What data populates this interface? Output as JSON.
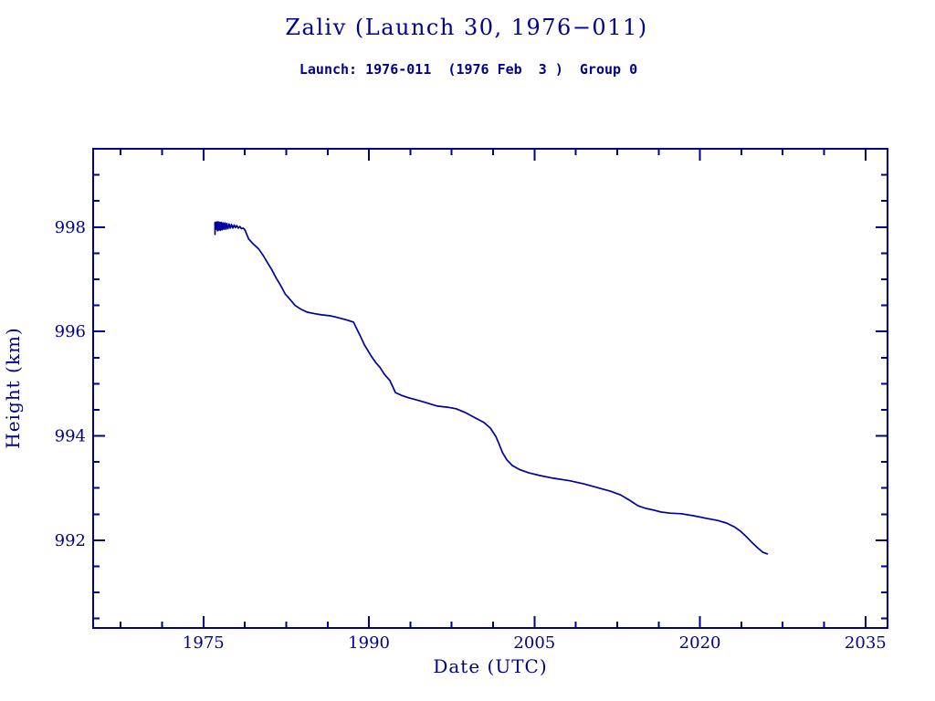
{
  "figure": {
    "background_color": "#FFFFFF",
    "text_color": "#00008B",
    "axis_color": "#00008B"
  },
  "chart_data": {
    "type": "line",
    "title": "Zaliv (Launch 30, 1976−011)",
    "subtitle": "Launch: 1976-011  (1976 Feb  3 )  Group 0",
    "xlabel": "Date (UTC)",
    "ylabel": "Height (km)",
    "xlim": [
      1965,
      2037
    ],
    "ylim": [
      990.32,
      999.5
    ],
    "xticks_major": [
      1975,
      1990,
      2005,
      2020,
      2035
    ],
    "xtick_minor_step": 3.75,
    "yticks_major": [
      992,
      994,
      996,
      998
    ],
    "ytick_minor_step": 0.5,
    "grid": false,
    "legend": "none",
    "line_color": "#0000A0",
    "series": [
      {
        "name": "height-km",
        "points": [
          [
            1976.04,
            998.08
          ],
          [
            1976.05,
            997.86
          ],
          [
            1976.06,
            998.09
          ],
          [
            1976.12,
            997.96
          ],
          [
            1976.2,
            998.1
          ],
          [
            1976.27,
            997.93
          ],
          [
            1976.34,
            998.1
          ],
          [
            1976.41,
            997.94
          ],
          [
            1976.48,
            998.09
          ],
          [
            1976.55,
            997.94
          ],
          [
            1976.62,
            998.09
          ],
          [
            1976.7,
            997.95
          ],
          [
            1976.78,
            998.08
          ],
          [
            1976.86,
            997.96
          ],
          [
            1976.94,
            998.08
          ],
          [
            1977.03,
            997.96
          ],
          [
            1977.12,
            998.07
          ],
          [
            1977.22,
            997.97
          ],
          [
            1977.32,
            998.06
          ],
          [
            1977.43,
            997.98
          ],
          [
            1977.54,
            998.05
          ],
          [
            1977.66,
            997.98
          ],
          [
            1977.78,
            998.04
          ],
          [
            1977.9,
            997.99
          ],
          [
            1978.02,
            998.03
          ],
          [
            1978.16,
            997.98
          ],
          [
            1978.3,
            998.01
          ],
          [
            1978.45,
            997.97
          ],
          [
            1978.6,
            997.98
          ],
          [
            1978.75,
            997.95
          ],
          [
            1979.1,
            997.77
          ],
          [
            1979.5,
            997.68
          ],
          [
            1980.0,
            997.58
          ],
          [
            1980.4,
            997.46
          ],
          [
            1980.8,
            997.32
          ],
          [
            1981.2,
            997.18
          ],
          [
            1981.6,
            997.02
          ],
          [
            1982.0,
            996.88
          ],
          [
            1982.4,
            996.72
          ],
          [
            1982.9,
            996.6
          ],
          [
            1983.3,
            996.5
          ],
          [
            1983.8,
            996.43
          ],
          [
            1984.4,
            996.37
          ],
          [
            1985.1,
            996.34
          ],
          [
            1985.7,
            996.32
          ],
          [
            1986.5,
            996.3
          ],
          [
            1987.1,
            996.27
          ],
          [
            1988.0,
            996.22
          ],
          [
            1988.6,
            996.18
          ],
          [
            1988.8,
            996.09
          ],
          [
            1989.2,
            995.92
          ],
          [
            1989.6,
            995.74
          ],
          [
            1990.2,
            995.53
          ],
          [
            1990.6,
            995.41
          ],
          [
            1991.0,
            995.31
          ],
          [
            1991.4,
            995.18
          ],
          [
            1991.9,
            995.06
          ],
          [
            1992.2,
            994.92
          ],
          [
            1992.4,
            994.83
          ],
          [
            1992.9,
            994.78
          ],
          [
            1993.6,
            994.73
          ],
          [
            1994.3,
            994.69
          ],
          [
            1994.8,
            994.66
          ],
          [
            1995.6,
            994.61
          ],
          [
            1996.2,
            994.57
          ],
          [
            1997.1,
            994.55
          ],
          [
            1997.9,
            994.52
          ],
          [
            1998.7,
            994.45
          ],
          [
            1999.5,
            994.36
          ],
          [
            2000.4,
            994.26
          ],
          [
            2001.0,
            994.15
          ],
          [
            2001.5,
            993.99
          ],
          [
            2001.8,
            993.84
          ],
          [
            2002.1,
            993.68
          ],
          [
            2002.5,
            993.54
          ],
          [
            2003.0,
            993.43
          ],
          [
            2003.7,
            993.35
          ],
          [
            2004.5,
            993.29
          ],
          [
            2005.5,
            993.24
          ],
          [
            2006.7,
            993.19
          ],
          [
            2008.2,
            993.14
          ],
          [
            2009.5,
            993.08
          ],
          [
            2010.7,
            993.01
          ],
          [
            2011.9,
            992.94
          ],
          [
            2012.8,
            992.87
          ],
          [
            2013.6,
            992.77
          ],
          [
            2014.4,
            992.66
          ],
          [
            2015.1,
            992.61
          ],
          [
            2015.8,
            992.58
          ],
          [
            2016.5,
            992.54
          ],
          [
            2017.3,
            992.52
          ],
          [
            2018.3,
            992.51
          ],
          [
            2019.4,
            992.47
          ],
          [
            2020.6,
            992.42
          ],
          [
            2021.6,
            992.38
          ],
          [
            2022.4,
            992.33
          ],
          [
            2023.1,
            992.26
          ],
          [
            2023.7,
            992.17
          ],
          [
            2024.2,
            992.07
          ],
          [
            2024.7,
            991.96
          ],
          [
            2025.2,
            991.86
          ],
          [
            2025.7,
            991.77
          ],
          [
            2026.1,
            991.74
          ]
        ]
      }
    ]
  }
}
